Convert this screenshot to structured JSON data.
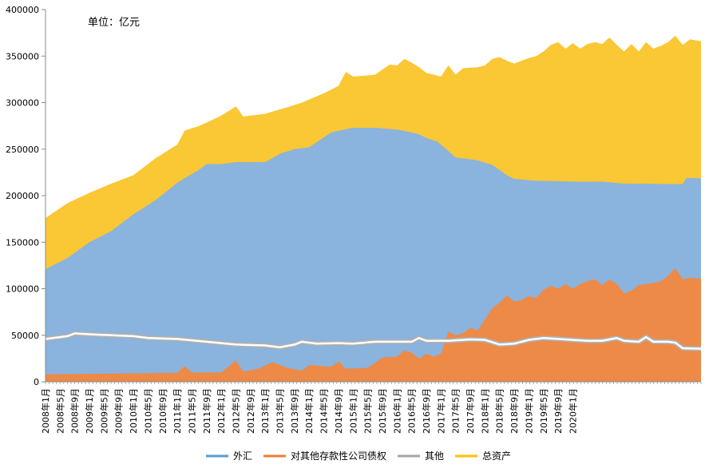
{
  "chart_data": {
    "type": "area",
    "title": "",
    "annotation": "单位：亿元",
    "xlabel": "",
    "ylabel": "",
    "ylim": [
      0,
      400000
    ],
    "y_ticks": [
      "0",
      "50000",
      "100000",
      "150000",
      "200000",
      "250000",
      "300000",
      "350000",
      "400000"
    ],
    "x_tick_labels": [
      "2008年1月",
      "2008年5月",
      "2008年9月",
      "2009年1月",
      "2009年5月",
      "2009年9月",
      "2010年1月",
      "2010年5月",
      "2010年9月",
      "2011年1月",
      "2011年5月",
      "2011年9月",
      "2012年1月",
      "2012年5月",
      "2012年9月",
      "2013年1月",
      "2013年5月",
      "2013年9月",
      "2014年1月",
      "2014年5月",
      "2014年9月",
      "2015年1月",
      "2015年5月",
      "2015年9月",
      "2016年1月",
      "2016年5月",
      "2016年9月",
      "2017年1月",
      "2017年5月",
      "2017年9月",
      "2018年1月",
      "2018年5月",
      "2018年9月",
      "2019年1月",
      "2019年5月",
      "2019年9月",
      "2020年1月"
    ],
    "x_start": "2008年1月",
    "x_end": "2020年5月",
    "grid": false,
    "legend_position": "bottom",
    "series": [
      {
        "name": "外汇",
        "color": "#8ab3de",
        "key_points": [
          [
            0,
            121000
          ],
          [
            6,
            133000
          ],
          [
            12,
            150000
          ],
          [
            18,
            162000
          ],
          [
            24,
            180000
          ],
          [
            30,
            195000
          ],
          [
            36,
            214000
          ],
          [
            42,
            228000
          ],
          [
            44,
            234000
          ],
          [
            48,
            234000
          ],
          [
            52,
            236000
          ],
          [
            60,
            236000
          ],
          [
            64,
            245000
          ],
          [
            68,
            250000
          ],
          [
            72,
            252000
          ],
          [
            78,
            268000
          ],
          [
            84,
            273000
          ],
          [
            90,
            273000
          ],
          [
            96,
            271000
          ],
          [
            100,
            268000
          ],
          [
            102,
            266000
          ],
          [
            104,
            262000
          ],
          [
            107,
            258000
          ],
          [
            110,
            248000
          ],
          [
            112,
            241000
          ],
          [
            114,
            240000
          ],
          [
            118,
            238000
          ],
          [
            122,
            233000
          ],
          [
            126,
            222000
          ],
          [
            128,
            218000
          ],
          [
            134,
            216000
          ],
          [
            140,
            215500
          ],
          [
            146,
            215000
          ],
          [
            152,
            215000
          ],
          [
            158,
            213000
          ],
          [
            164,
            212800
          ],
          [
            170,
            212500
          ],
          [
            174,
            212500
          ],
          [
            175,
            219000
          ],
          [
            178,
            219000
          ],
          [
            179,
            218000
          ]
        ]
      },
      {
        "name": "对其他存款性公司债权",
        "color": "#ee8a47",
        "key_points": [
          [
            0,
            8000
          ],
          [
            24,
            9000
          ],
          [
            36,
            9500
          ],
          [
            38,
            17000
          ],
          [
            40,
            10000
          ],
          [
            48,
            10000
          ],
          [
            52,
            23000
          ],
          [
            54,
            11000
          ],
          [
            58,
            14000
          ],
          [
            62,
            21000
          ],
          [
            66,
            15000
          ],
          [
            70,
            12000
          ],
          [
            72,
            18000
          ],
          [
            78,
            16000
          ],
          [
            80,
            22000
          ],
          [
            82,
            14000
          ],
          [
            88,
            15000
          ],
          [
            92,
            26000
          ],
          [
            96,
            27000
          ],
          [
            98,
            34000
          ],
          [
            100,
            31000
          ],
          [
            102,
            25000
          ],
          [
            104,
            30000
          ],
          [
            106,
            27000
          ],
          [
            108,
            30000
          ],
          [
            110,
            54000
          ],
          [
            112,
            50000
          ],
          [
            114,
            52000
          ],
          [
            116,
            58000
          ],
          [
            118,
            55000
          ],
          [
            120,
            67000
          ],
          [
            122,
            79000
          ],
          [
            124,
            85000
          ],
          [
            126,
            93000
          ],
          [
            128,
            86000
          ],
          [
            130,
            88000
          ],
          [
            132,
            92000
          ],
          [
            134,
            90000
          ],
          [
            136,
            99000
          ],
          [
            138,
            103000
          ],
          [
            140,
            100000
          ],
          [
            142,
            105000
          ],
          [
            144,
            100000
          ],
          [
            146,
            105000
          ],
          [
            148,
            108000
          ],
          [
            150,
            110000
          ],
          [
            152,
            104000
          ],
          [
            154,
            110000
          ],
          [
            156,
            105000
          ],
          [
            158,
            95000
          ],
          [
            160,
            98000
          ],
          [
            162,
            104000
          ],
          [
            164,
            105000
          ],
          [
            166,
            106000
          ],
          [
            168,
            108000
          ],
          [
            170,
            114000
          ],
          [
            172,
            122000
          ],
          [
            174,
            110000
          ],
          [
            176,
            112000
          ],
          [
            178,
            111000
          ],
          [
            179,
            111000
          ]
        ]
      },
      {
        "name": "其他",
        "color": "#b0b0b0",
        "key_points": [
          [
            0,
            46000
          ],
          [
            6,
            49000
          ],
          [
            8,
            52000
          ],
          [
            12,
            51000
          ],
          [
            18,
            50000
          ],
          [
            24,
            49000
          ],
          [
            28,
            47000
          ],
          [
            36,
            46000
          ],
          [
            44,
            43000
          ],
          [
            52,
            40000
          ],
          [
            60,
            39000
          ],
          [
            64,
            37000
          ],
          [
            68,
            40000
          ],
          [
            70,
            43000
          ],
          [
            74,
            41000
          ],
          [
            80,
            41500
          ],
          [
            84,
            41000
          ],
          [
            90,
            43000
          ],
          [
            96,
            43000
          ],
          [
            100,
            43000
          ],
          [
            102,
            47000
          ],
          [
            104,
            44000
          ],
          [
            110,
            44000
          ],
          [
            116,
            45500
          ],
          [
            120,
            45000
          ],
          [
            124,
            40000
          ],
          [
            128,
            41000
          ],
          [
            132,
            45000
          ],
          [
            136,
            47000
          ],
          [
            140,
            46000
          ],
          [
            144,
            45000
          ],
          [
            148,
            44000
          ],
          [
            152,
            44000
          ],
          [
            156,
            47000
          ],
          [
            158,
            44000
          ],
          [
            162,
            43000
          ],
          [
            164,
            48000
          ],
          [
            166,
            43000
          ],
          [
            170,
            43000
          ],
          [
            172,
            42000
          ],
          [
            174,
            36000
          ],
          [
            179,
            35500
          ]
        ]
      },
      {
        "name": "总资产",
        "color": "#fac735",
        "key_points": [
          [
            0,
            176000
          ],
          [
            6,
            192000
          ],
          [
            12,
            203000
          ],
          [
            18,
            213000
          ],
          [
            24,
            222000
          ],
          [
            30,
            240000
          ],
          [
            36,
            255000
          ],
          [
            38,
            270000
          ],
          [
            42,
            275000
          ],
          [
            48,
            286000
          ],
          [
            52,
            296000
          ],
          [
            54,
            285000
          ],
          [
            60,
            288000
          ],
          [
            66,
            295000
          ],
          [
            70,
            300000
          ],
          [
            76,
            310000
          ],
          [
            80,
            318000
          ],
          [
            82,
            333000
          ],
          [
            84,
            328000
          ],
          [
            90,
            330000
          ],
          [
            94,
            341000
          ],
          [
            96,
            340000
          ],
          [
            98,
            347000
          ],
          [
            100,
            343000
          ],
          [
            102,
            338000
          ],
          [
            104,
            332000
          ],
          [
            106,
            330000
          ],
          [
            108,
            328000
          ],
          [
            110,
            340000
          ],
          [
            112,
            330000
          ],
          [
            114,
            337000
          ],
          [
            118,
            338000
          ],
          [
            120,
            340000
          ],
          [
            122,
            347000
          ],
          [
            124,
            349000
          ],
          [
            126,
            345000
          ],
          [
            128,
            342000
          ],
          [
            132,
            348000
          ],
          [
            134,
            350000
          ],
          [
            136,
            355000
          ],
          [
            138,
            362000
          ],
          [
            140,
            365000
          ],
          [
            142,
            358000
          ],
          [
            144,
            364000
          ],
          [
            146,
            358000
          ],
          [
            148,
            363000
          ],
          [
            150,
            365000
          ],
          [
            152,
            363000
          ],
          [
            154,
            370000
          ],
          [
            156,
            362000
          ],
          [
            158,
            355000
          ],
          [
            160,
            363000
          ],
          [
            162,
            355000
          ],
          [
            164,
            365000
          ],
          [
            166,
            358000
          ],
          [
            168,
            361000
          ],
          [
            170,
            365000
          ],
          [
            172,
            372000
          ],
          [
            174,
            362000
          ],
          [
            176,
            368000
          ],
          [
            179,
            366000
          ]
        ]
      }
    ]
  },
  "legend": {
    "items": [
      {
        "label": "外汇",
        "color": "#5b9bd5"
      },
      {
        "label": "对其他存款性公司债权",
        "color": "#ed7d31"
      },
      {
        "label": "其他",
        "color": "#a5a5a5"
      },
      {
        "label": "总资产",
        "color": "#ffc000"
      }
    ]
  }
}
